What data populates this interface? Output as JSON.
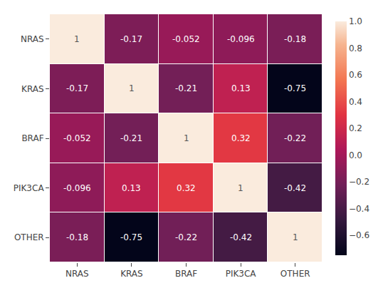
{
  "chart_data": {
    "type": "heatmap",
    "categories": [
      "NRAS",
      "KRAS",
      "BRAF",
      "PIK3CA",
      "OTHER"
    ],
    "values": [
      [
        1,
        -0.17,
        -0.052,
        -0.096,
        -0.18
      ],
      [
        -0.17,
        1,
        -0.21,
        0.13,
        -0.75
      ],
      [
        -0.052,
        -0.21,
        1,
        0.32,
        -0.22
      ],
      [
        -0.096,
        0.13,
        0.32,
        1,
        -0.42
      ],
      [
        -0.18,
        -0.75,
        -0.22,
        -0.42,
        1
      ]
    ],
    "data_labels": true,
    "color_range": [
      -0.75,
      1.0
    ],
    "colorbar_ticks": [
      {
        "value": 1.0,
        "label": "1.0"
      },
      {
        "value": 0.8,
        "label": "0.8"
      },
      {
        "value": 0.6,
        "label": "0.6"
      },
      {
        "value": 0.4,
        "label": "0.4"
      },
      {
        "value": 0.2,
        "label": "0.2"
      },
      {
        "value": 0.0,
        "label": "0.0"
      },
      {
        "value": -0.2,
        "label": "−0.2"
      },
      {
        "value": -0.4,
        "label": "−0.4"
      },
      {
        "value": -0.6,
        "label": "−0.6"
      }
    ],
    "grid": true
  }
}
